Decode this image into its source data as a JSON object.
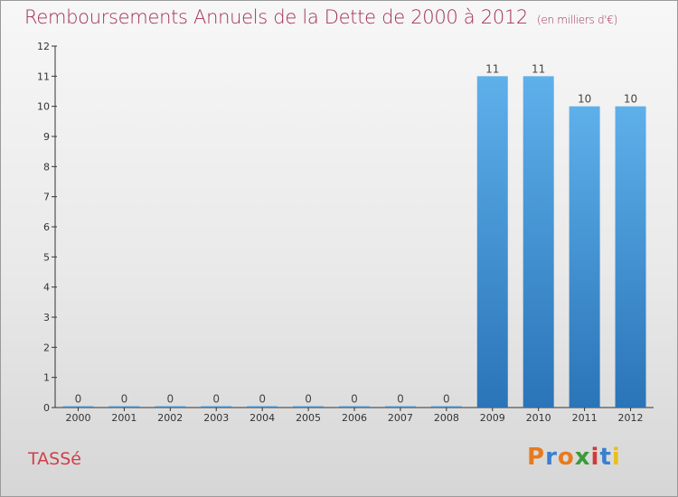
{
  "title": "Remboursements Annuels de la Dette de 2000 à 2012",
  "subtitle": "(en milliers d'€)",
  "commune": "TASSé",
  "logo": {
    "text": "Proxiti",
    "colors": [
      "#e87a1e",
      "#3a7fd0",
      "#e87a1e",
      "#3a9a3a",
      "#d03a3a",
      "#3a7fd0",
      "#e8c01e"
    ]
  },
  "colors": {
    "bar": "#3a8fd8",
    "bar_light": "#5eb0ea",
    "bar_dark": "#2a74b8"
  },
  "chart_data": {
    "type": "bar",
    "categories": [
      "2000",
      "2001",
      "2002",
      "2003",
      "2004",
      "2005",
      "2006",
      "2007",
      "2008",
      "2009",
      "2010",
      "2011",
      "2012"
    ],
    "values": [
      0,
      0,
      0,
      0,
      0,
      0,
      0,
      0,
      0,
      11,
      11,
      10,
      10
    ],
    "data_labels": [
      "0",
      "0",
      "0",
      "0",
      "0",
      "0",
      "0",
      "0",
      "0",
      "11",
      "11",
      "10",
      "10"
    ],
    "title": "Remboursements Annuels de la Dette de 2000 à 2012",
    "ylim": [
      0,
      12
    ],
    "yticks": [
      "0",
      "1",
      "2",
      "3",
      "4",
      "5",
      "6",
      "7",
      "8",
      "9",
      "10",
      "11",
      "12"
    ],
    "grid": false
  }
}
